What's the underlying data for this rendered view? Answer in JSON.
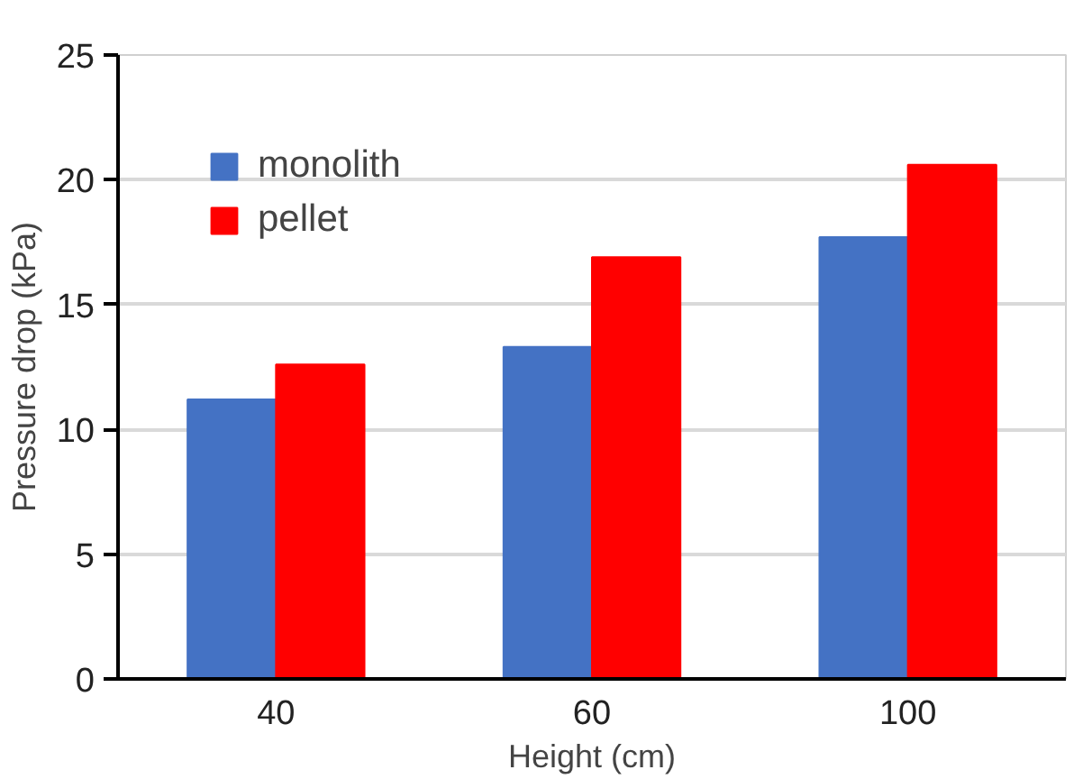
{
  "chart_data": {
    "type": "bar",
    "xlabel": "Height (cm)",
    "ylabel": "Pressure drop (kPa)",
    "categories": [
      "40",
      "60",
      "100"
    ],
    "series": [
      {
        "name": "monolith",
        "color": "#4472c4",
        "values": [
          11.2,
          13.3,
          17.7
        ]
      },
      {
        "name": "pellet",
        "color": "#ff0000",
        "values": [
          12.6,
          16.9,
          20.6
        ]
      }
    ],
    "ylim": [
      0,
      25
    ],
    "yticks": [
      0,
      5,
      10,
      15,
      20,
      25
    ],
    "grid": "y",
    "legend": "top left"
  }
}
